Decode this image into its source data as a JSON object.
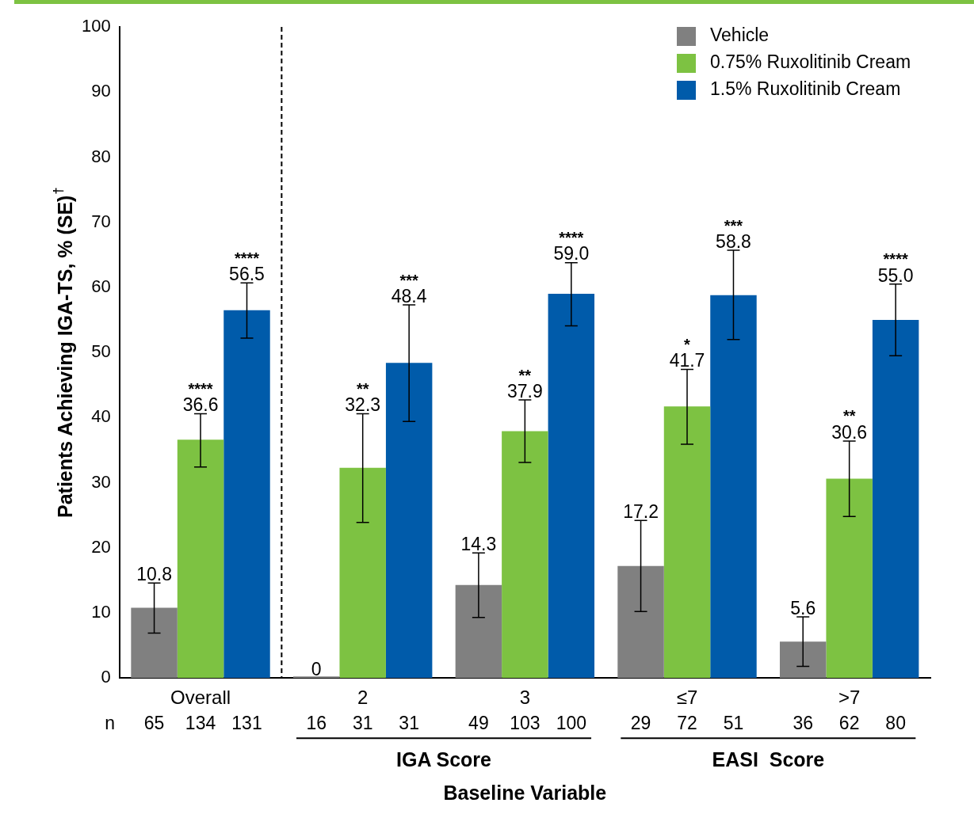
{
  "chart_data": {
    "type": "bar",
    "ylabel": "Patients Achieving IGA-TS, % (SE)$^{†}$",
    "xlabel": "Baseline Variable",
    "categories": [
      "Overall",
      "2",
      "3",
      "≤7",
      ">7"
    ],
    "series": [
      {
        "name": "Vehicle",
        "color": "#808080",
        "values": [
          10.8,
          0,
          14.3,
          17.2,
          5.6
        ],
        "value_labels": [
          "10.8",
          "0",
          "14.3",
          "17.2",
          "5.6"
        ],
        "errors": [
          [
            6.9,
            14.6
          ],
          null,
          [
            9.3,
            19.2
          ],
          [
            10.2,
            24.2
          ],
          [
            1.8,
            9.4
          ]
        ]
      },
      {
        "name": "0.75% Ruxolitinib Cream",
        "color": "#7dc242",
        "values": [
          36.6,
          32.3,
          37.9,
          41.7,
          30.6
        ],
        "value_labels": [
          "36.6",
          "32.3",
          "37.9",
          "41.7",
          "30.6"
        ],
        "errors": [
          [
            32.4,
            40.6
          ],
          [
            23.9,
            40.6
          ],
          [
            33.1,
            42.7
          ],
          [
            35.9,
            47.4
          ],
          [
            24.8,
            36.4
          ]
        ]
      },
      {
        "name": "1.5% Ruxolitinib Cream",
        "color": "#005baa",
        "values": [
          56.5,
          48.4,
          59.0,
          58.8,
          55.0
        ],
        "value_labels": [
          "56.5",
          "48.4",
          "59.0",
          "58.8",
          "55.0"
        ],
        "errors": [
          [
            52.2,
            60.7
          ],
          [
            39.4,
            57.3
          ],
          [
            54.1,
            63.8
          ],
          [
            52.0,
            65.7
          ],
          [
            49.5,
            60.5
          ]
        ]
      }
    ],
    "ylim": [
      0,
      100
    ],
    "yticks": [
      0,
      10,
      20,
      30,
      40,
      50,
      60,
      70,
      80,
      90,
      100
    ],
    "grid": false,
    "legend": "top right",
    "annotations": [
      "****",
      "****",
      "**",
      "***",
      "**",
      "****",
      "*",
      "***",
      "**",
      "****",
      "n",
      "65",
      "134",
      "131",
      "16",
      "31",
      "31",
      "49",
      "103",
      "100",
      "29",
      "72",
      "51",
      "36",
      "62",
      "80",
      "IGA Score",
      "EASI  Score"
    ]
  }
}
